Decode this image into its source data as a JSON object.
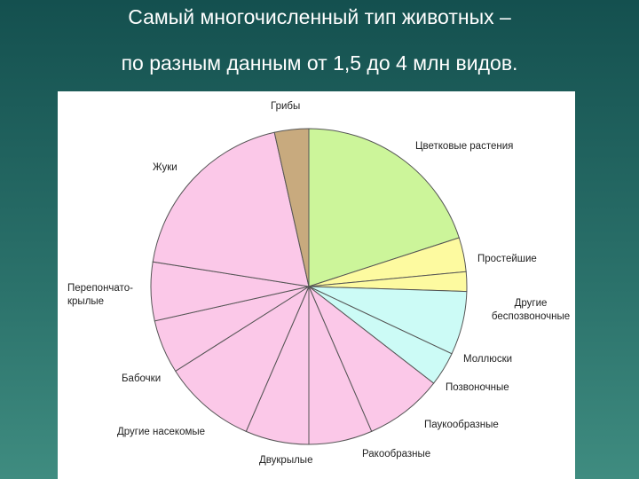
{
  "chart_data": {
    "type": "pie",
    "title": "Самый многочисленный тип животных –",
    "subtitle": "по разным данным от 1,5 до 4 млн видов.",
    "categories": [
      "Цветковые растения",
      "Простейшие",
      "Другие\nбеспозвоночные",
      "Моллюски",
      "Позвоночные",
      "Паукообразные",
      "Ракообразные",
      "Двукрылые",
      "Другие насекомые",
      "Бабочки",
      "Перепончато-\nкрылые",
      "Жуки",
      "Грибы"
    ],
    "values": [
      20,
      3.5,
      2,
      6.5,
      3.5,
      8,
      6.5,
      6.5,
      9.5,
      5.5,
      6,
      19,
      3.5
    ],
    "colors": [
      "#ccf59a",
      "#fdfaa0",
      "#fdfaa0",
      "#ccfbf6",
      "#ccfbf6",
      "#fbc8e8",
      "#fbc8e8",
      "#fbc8e8",
      "#fbc8e8",
      "#fbc8e8",
      "#fbc8e8",
      "#fbc8e8",
      "#c8aa7e"
    ]
  }
}
